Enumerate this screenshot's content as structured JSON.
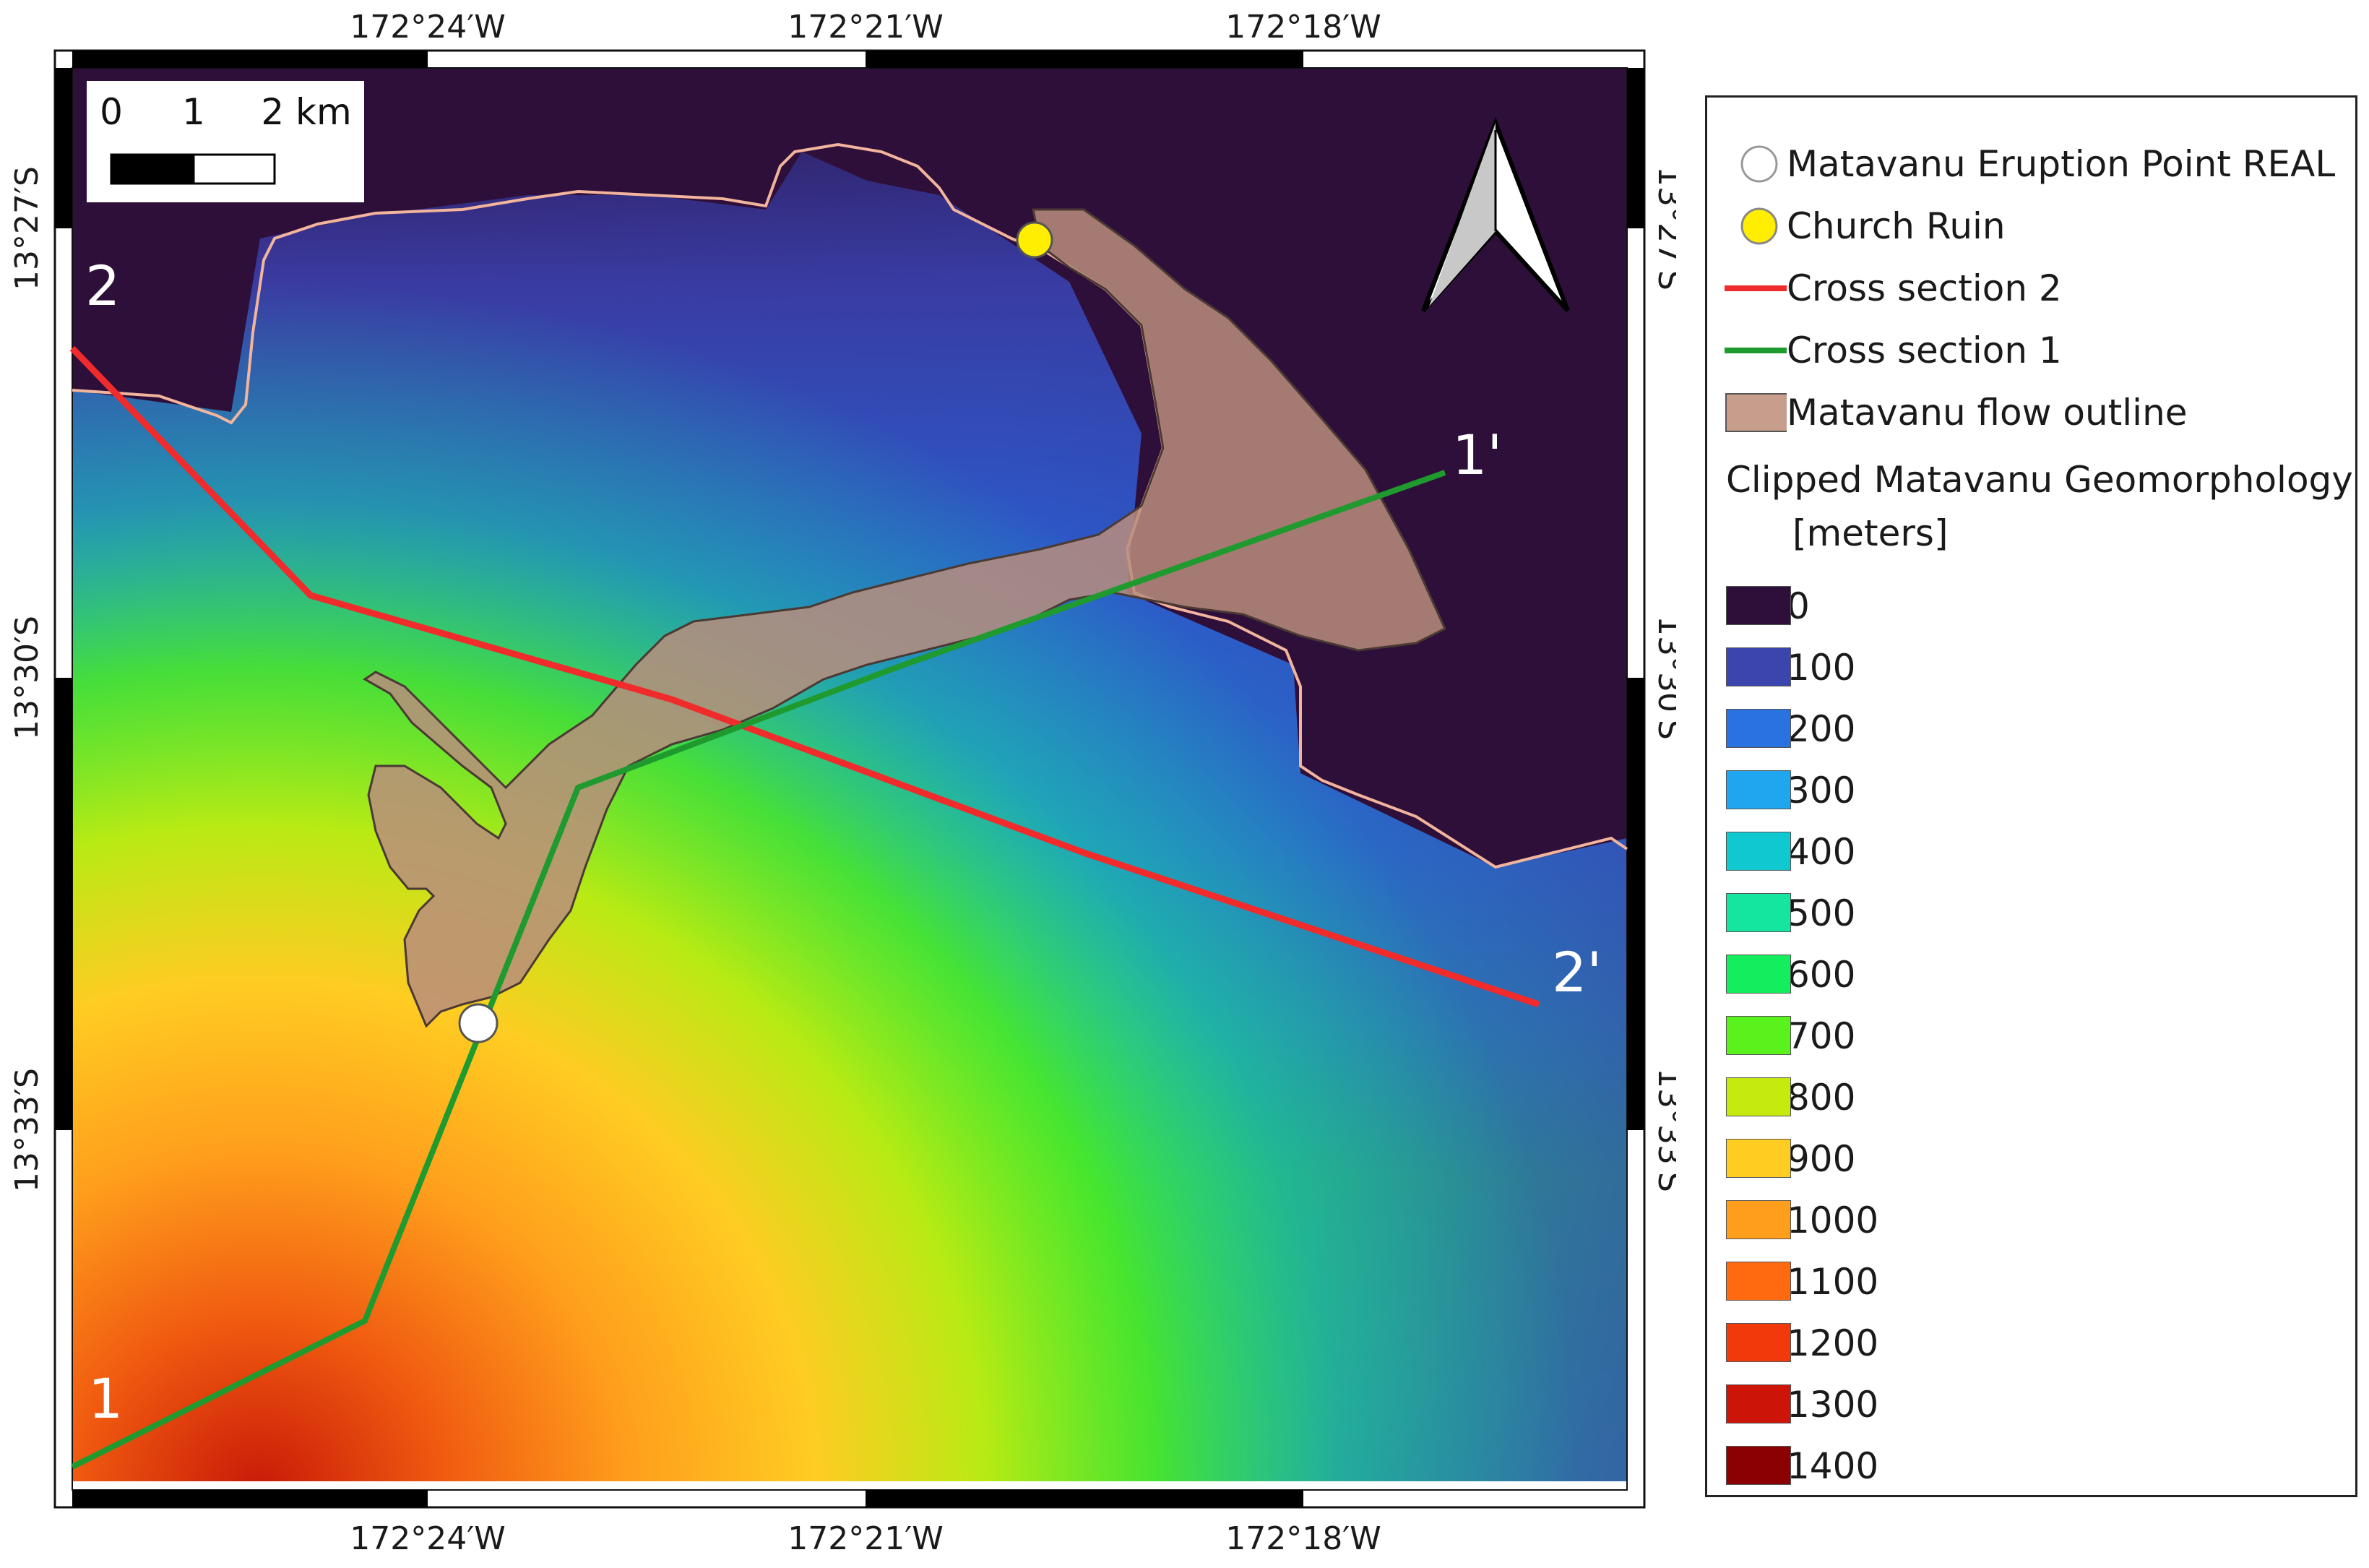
{
  "map": {
    "top_ticks": [
      "172°24′W",
      "172°21′W",
      "172°18′W"
    ],
    "bottom_ticks": [
      "172°24′W",
      "172°21′W",
      "172°18′W"
    ],
    "left_ticks": [
      "13°27′S",
      "13°30′S",
      "13°33′S"
    ],
    "right_ticks": [
      "13°27′S",
      "13°30′S",
      "13°33′S"
    ],
    "scalebar": {
      "labels": [
        "0",
        "1",
        "2 km"
      ]
    },
    "cross_section_labels": {
      "start_1": "1",
      "end_1": "1'",
      "start_2": "2",
      "end_2": "2'"
    },
    "colors": {
      "cross_section_1": "#1f9a2e",
      "cross_section_2": "#ef2b2b",
      "coastline": "#f2b49c",
      "flow_fill": "#b98d7c",
      "church": "#ffee00",
      "eruption": "#ffffff"
    },
    "icons": [
      "north-arrow-icon",
      "eruption-point-icon",
      "church-ruin-icon"
    ]
  },
  "legend": {
    "items": [
      {
        "label": "Matavanu Eruption Point REAL",
        "icon": "white-circle"
      },
      {
        "label": "Church Ruin",
        "icon": "yellow-circle"
      },
      {
        "label": "Cross section 2",
        "icon": "red-line"
      },
      {
        "label": "Cross section 1",
        "icon": "green-line"
      },
      {
        "label": "Matavanu flow outline",
        "icon": "brown-polygon"
      }
    ],
    "raster_title_line1": "Clipped Matavanu Geomorphology",
    "raster_title_line2": "[meters]",
    "ramp": [
      {
        "value": "0",
        "color": "#2e0f3a"
      },
      {
        "value": "100",
        "color": "#3a45ad"
      },
      {
        "value": "200",
        "color": "#2a72e0"
      },
      {
        "value": "300",
        "color": "#1fa6ef"
      },
      {
        "value": "400",
        "color": "#10c8cf"
      },
      {
        "value": "500",
        "color": "#14e6a0"
      },
      {
        "value": "600",
        "color": "#14ee5e"
      },
      {
        "value": "700",
        "color": "#5af21c"
      },
      {
        "value": "800",
        "color": "#c4ea0e"
      },
      {
        "value": "900",
        "color": "#ffcc22"
      },
      {
        "value": "1000",
        "color": "#ff9e1c"
      },
      {
        "value": "1100",
        "color": "#ff6a10"
      },
      {
        "value": "1200",
        "color": "#f2390c"
      },
      {
        "value": "1300",
        "color": "#cc1408"
      },
      {
        "value": "1400",
        "color": "#8b0000"
      }
    ]
  }
}
